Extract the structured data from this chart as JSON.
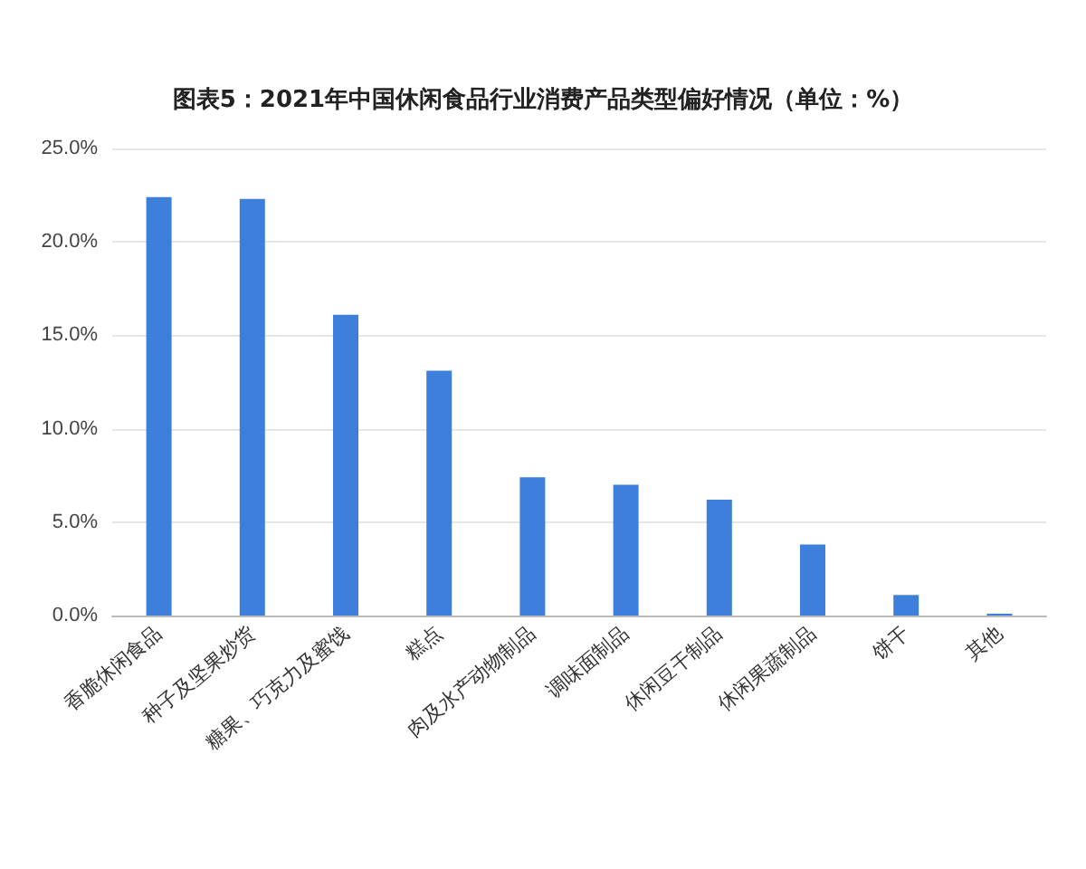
{
  "chart_data": {
    "type": "bar",
    "title": "图表5：2021年中国休闲食品行业消费产品类型偏好情况（单位：%）",
    "categories": [
      "香脆休闲食品",
      "种子及坚果炒货",
      "糖果、巧克力及蜜饯",
      "糕点",
      "肉及水产动物制品",
      "调味面制品",
      "休闲豆干制品",
      "休闲果蔬制品",
      "饼干",
      "其他"
    ],
    "values": [
      22.4,
      22.3,
      16.1,
      13.1,
      7.4,
      7.0,
      6.2,
      3.8,
      1.1,
      0.1
    ],
    "color": "#3f7fdc",
    "ylim": [
      0,
      25
    ],
    "yticks": [
      {
        "value": 0,
        "label": "0.0%"
      },
      {
        "value": 5,
        "label": "5.0%"
      },
      {
        "value": 10,
        "label": "10.0%"
      },
      {
        "value": 15,
        "label": "15.0%"
      },
      {
        "value": 20,
        "label": "20.0%"
      },
      {
        "value": 25,
        "label": "25.0%"
      }
    ],
    "grid": "y"
  }
}
